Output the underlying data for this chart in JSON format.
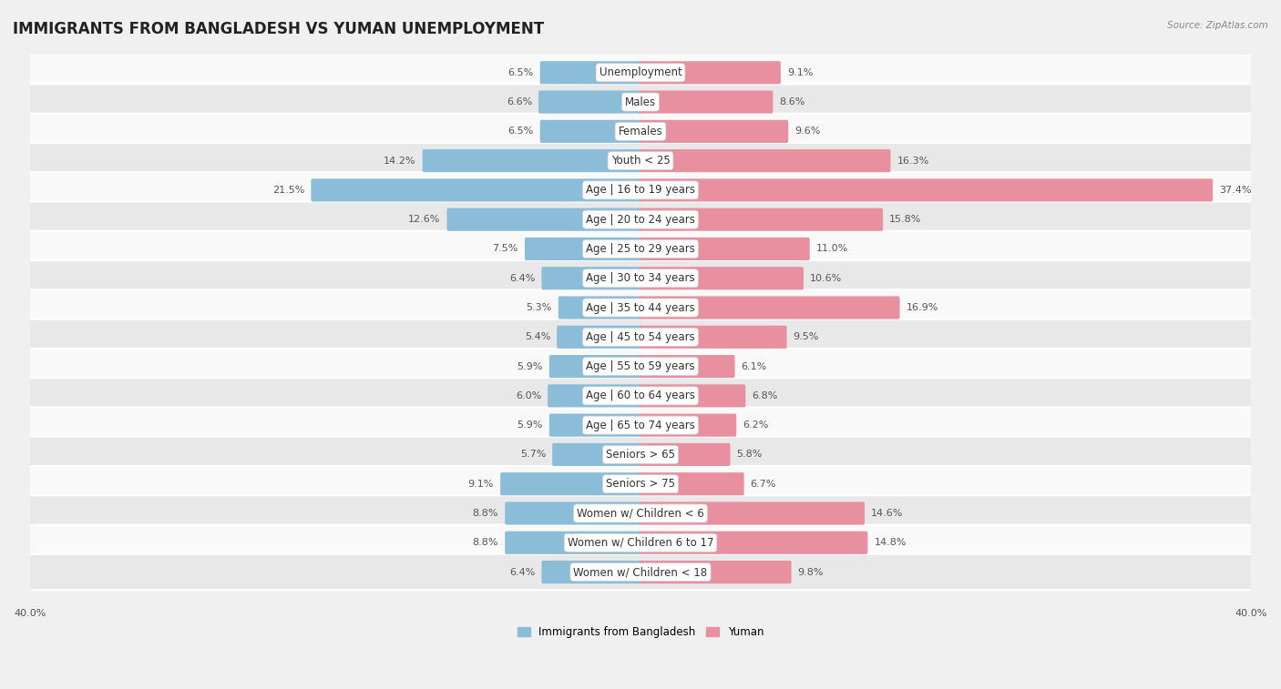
{
  "title": "IMMIGRANTS FROM BANGLADESH VS YUMAN UNEMPLOYMENT",
  "source": "Source: ZipAtlas.com",
  "categories": [
    "Unemployment",
    "Males",
    "Females",
    "Youth < 25",
    "Age | 16 to 19 years",
    "Age | 20 to 24 years",
    "Age | 25 to 29 years",
    "Age | 30 to 34 years",
    "Age | 35 to 44 years",
    "Age | 45 to 54 years",
    "Age | 55 to 59 years",
    "Age | 60 to 64 years",
    "Age | 65 to 74 years",
    "Seniors > 65",
    "Seniors > 75",
    "Women w/ Children < 6",
    "Women w/ Children 6 to 17",
    "Women w/ Children < 18"
  ],
  "left_values": [
    6.5,
    6.6,
    6.5,
    14.2,
    21.5,
    12.6,
    7.5,
    6.4,
    5.3,
    5.4,
    5.9,
    6.0,
    5.9,
    5.7,
    9.1,
    8.8,
    8.8,
    6.4
  ],
  "right_values": [
    9.1,
    8.6,
    9.6,
    16.3,
    37.4,
    15.8,
    11.0,
    10.6,
    16.9,
    9.5,
    6.1,
    6.8,
    6.2,
    5.8,
    6.7,
    14.6,
    14.8,
    9.8
  ],
  "left_color": "#8bbdd9",
  "right_color": "#e8909f",
  "bg_color": "#f0f0f0",
  "row_bg_light": "#f9f9f9",
  "row_bg_dark": "#e8e8e8",
  "axis_limit": 40.0,
  "legend_left": "Immigrants from Bangladesh",
  "legend_right": "Yuman",
  "title_fontsize": 12,
  "label_fontsize": 8.5,
  "value_fontsize": 8
}
